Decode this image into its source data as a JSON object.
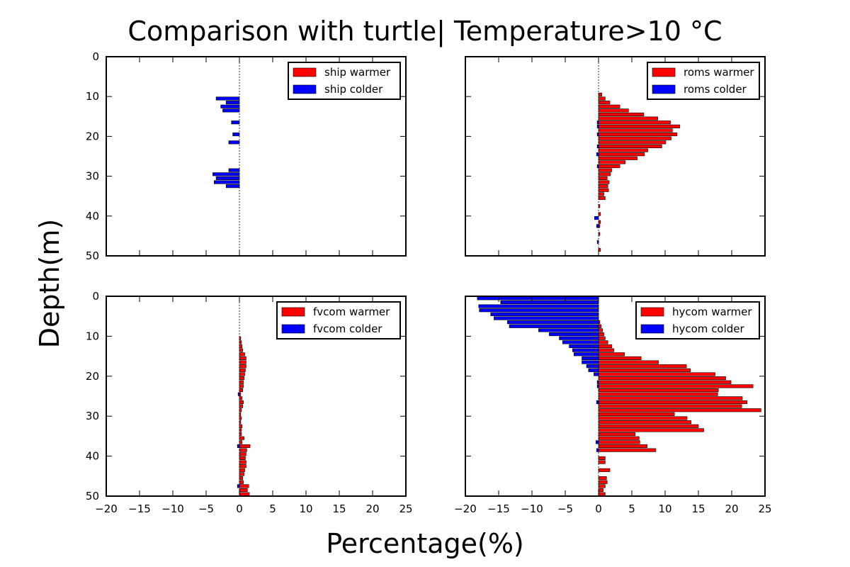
{
  "figure": {
    "title": "Comparison with turtle| Temperature>10 °C",
    "ylabel": "Depth(m)",
    "xlabel": "Percentage(%)"
  },
  "chart_data": [
    {
      "type": "bar",
      "orientation": "horizontal",
      "xlim": [
        -20,
        25
      ],
      "ylim": [
        0,
        50
      ],
      "y_inverted": true,
      "xticks": [
        -20,
        -15,
        -10,
        -5,
        0,
        5,
        10,
        15,
        20,
        25
      ],
      "yticks": [
        0,
        10,
        20,
        30,
        40,
        50
      ],
      "legend_position": "top-right",
      "colors": {
        "warmer": "#ff0000",
        "colder": "#0000ff"
      },
      "series": [
        {
          "name": "ship warmer",
          "key": "warmer",
          "depth": [],
          "values": []
        },
        {
          "name": "ship colder",
          "key": "colder",
          "depth": [
            10.5,
            11.5,
            12.5,
            13.5,
            16.5,
            19.5,
            21.5,
            28.5,
            29.5,
            30.5,
            31.5,
            32.5
          ],
          "values": [
            -3.5,
            -2,
            -2.8,
            -2.5,
            -1.2,
            -1,
            -1.6,
            -1.6,
            -4,
            -3.5,
            -3.8,
            -2
          ]
        }
      ]
    },
    {
      "type": "bar",
      "orientation": "horizontal",
      "xlim": [
        -20,
        25
      ],
      "ylim": [
        0,
        50
      ],
      "y_inverted": true,
      "xticks": [
        -20,
        -15,
        -10,
        -5,
        0,
        5,
        10,
        15,
        20,
        25
      ],
      "yticks": [
        0,
        10,
        20,
        30,
        40,
        50
      ],
      "legend_position": "top-right",
      "colors": {
        "warmer": "#ff0000",
        "colder": "#0000ff"
      },
      "series": [
        {
          "name": "roms warmer",
          "key": "warmer",
          "depth": [
            9.5,
            10.5,
            11.5,
            12.5,
            13.5,
            14.5,
            15.5,
            16.5,
            17.5,
            18.5,
            19.5,
            20.5,
            21.5,
            22.5,
            23.5,
            24.5,
            25.5,
            26.5,
            27.5,
            28.5,
            29.5,
            30.5,
            31.5,
            32.5,
            33.5,
            34.5,
            35.5,
            37.5,
            39.5,
            41.5,
            42.5,
            44.5,
            48.5
          ],
          "values": [
            0.5,
            1,
            1.7,
            3.2,
            4.5,
            6.8,
            8.9,
            10.8,
            12.2,
            11.1,
            11.8,
            10.9,
            10.1,
            9.5,
            7.4,
            6.9,
            5.8,
            4,
            3.2,
            2,
            1.8,
            1.3,
            1.6,
            1.4,
            1.5,
            0.8,
            1,
            0.2,
            0.3,
            0.3,
            0.2,
            0.2,
            0.3
          ]
        },
        {
          "name": "roms colder",
          "key": "colder",
          "depth": [
            16.5,
            17.5,
            19.5,
            22.5,
            24.5,
            27.5,
            40.5,
            42.5,
            46.5
          ],
          "values": [
            -0.2,
            -0.2,
            -0.2,
            -0.2,
            -0.3,
            -0.2,
            -0.6,
            -0.3,
            -0.2
          ]
        }
      ]
    },
    {
      "type": "bar",
      "orientation": "horizontal",
      "xlim": [
        -20,
        25
      ],
      "ylim": [
        0,
        50
      ],
      "y_inverted": true,
      "xticks": [
        -20,
        -15,
        -10,
        -5,
        0,
        5,
        10,
        15,
        20,
        25
      ],
      "yticks": [
        0,
        10,
        20,
        30,
        40,
        50
      ],
      "legend_position": "top-right",
      "colors": {
        "warmer": "#ff0000",
        "colder": "#0000ff"
      },
      "series": [
        {
          "name": "fvcom warmer",
          "key": "warmer",
          "depth": [
            10.5,
            11.5,
            12.5,
            13.5,
            14.5,
            15.5,
            16.5,
            17.5,
            18.5,
            19.5,
            20.5,
            21.5,
            22.5,
            23.5,
            24.5,
            25.5,
            26.5,
            27.5,
            28.5,
            29.5,
            30.5,
            31.5,
            32.5,
            33.5,
            34.5,
            35.5,
            36.5,
            37.5,
            38.5,
            39.5,
            40.5,
            41.5,
            42.5,
            43.5,
            44.5,
            45.5,
            46.5,
            47.5,
            48.5,
            49.5
          ],
          "values": [
            0.2,
            0.3,
            0.4,
            0.5,
            0.8,
            1,
            1,
            1,
            0.9,
            0.8,
            0.7,
            0.6,
            0.6,
            0.5,
            0.2,
            0.4,
            0.6,
            0.5,
            0.3,
            0.2,
            0.3,
            0.2,
            0.4,
            0.3,
            0.3,
            0.7,
            0.4,
            1.6,
            1.1,
            1,
            0.9,
            1,
            1,
            0.8,
            0.7,
            0.5,
            0.6,
            1.4,
            1.2,
            1.5
          ]
        },
        {
          "name": "fvcom colder",
          "key": "colder",
          "depth": [
            24.5,
            37.5,
            47.5
          ],
          "values": [
            -0.2,
            -0.3,
            -0.3
          ]
        }
      ]
    },
    {
      "type": "bar",
      "orientation": "horizontal",
      "xlim": [
        -20,
        25
      ],
      "ylim": [
        0,
        50
      ],
      "y_inverted": true,
      "xticks": [
        -20,
        -15,
        -10,
        -5,
        0,
        5,
        10,
        15,
        20,
        25
      ],
      "yticks": [
        0,
        10,
        20,
        30,
        40,
        50
      ],
      "legend_position": "top-right",
      "colors": {
        "warmer": "#ff0000",
        "colder": "#0000ff"
      },
      "series": [
        {
          "name": "hycom warmer",
          "key": "warmer",
          "depth": [
            6.5,
            7.5,
            8.5,
            9.5,
            10.5,
            11.5,
            12.5,
            13.5,
            14.5,
            15.5,
            16.5,
            17.5,
            18.5,
            19.5,
            20.5,
            21.5,
            22.5,
            23.5,
            24.5,
            25.5,
            26.5,
            27.5,
            28.5,
            29.5,
            30.5,
            31.5,
            32.5,
            33.5,
            34.5,
            35.5,
            36.5,
            37.5,
            38.5,
            40.5,
            41.5,
            43.5,
            45.5,
            46.5,
            47.5,
            48.5,
            49.5
          ],
          "values": [
            0.2,
            0.4,
            0.6,
            0.8,
            1,
            1.4,
            2,
            2.3,
            3.9,
            6.4,
            9,
            13.2,
            13.8,
            17.5,
            19.1,
            19.9,
            23.2,
            18,
            17.9,
            21.6,
            22.3,
            21.5,
            24.4,
            11.4,
            13.3,
            13.9,
            15,
            15.8,
            5.5,
            6.1,
            6.2,
            7.3,
            8.6,
            1,
            1,
            1.7,
            1.2,
            1.3,
            1,
            0.7,
            1
          ]
        },
        {
          "name": "hycom colder",
          "key": "colder",
          "depth": [
            0.5,
            1.5,
            2.5,
            3.5,
            4.5,
            5.5,
            6.5,
            7.5,
            8.5,
            9.5,
            10.5,
            11.5,
            12.5,
            13.5,
            14.5,
            15.5,
            16.5,
            17.5,
            18.5,
            19.5,
            21.5,
            22.5,
            26.5,
            36.5,
            38.5
          ],
          "values": [
            -18.2,
            -14.7,
            -18,
            -17.9,
            -16.2,
            -15.7,
            -13.7,
            -13.4,
            -9,
            -7.4,
            -5.9,
            -5.4,
            -4.4,
            -3.9,
            -3.7,
            -2.5,
            -2.5,
            -1.8,
            -1.5,
            -0.7,
            -0.2,
            -0.2,
            -0.3,
            -0.4,
            -0.3
          ]
        }
      ]
    }
  ]
}
